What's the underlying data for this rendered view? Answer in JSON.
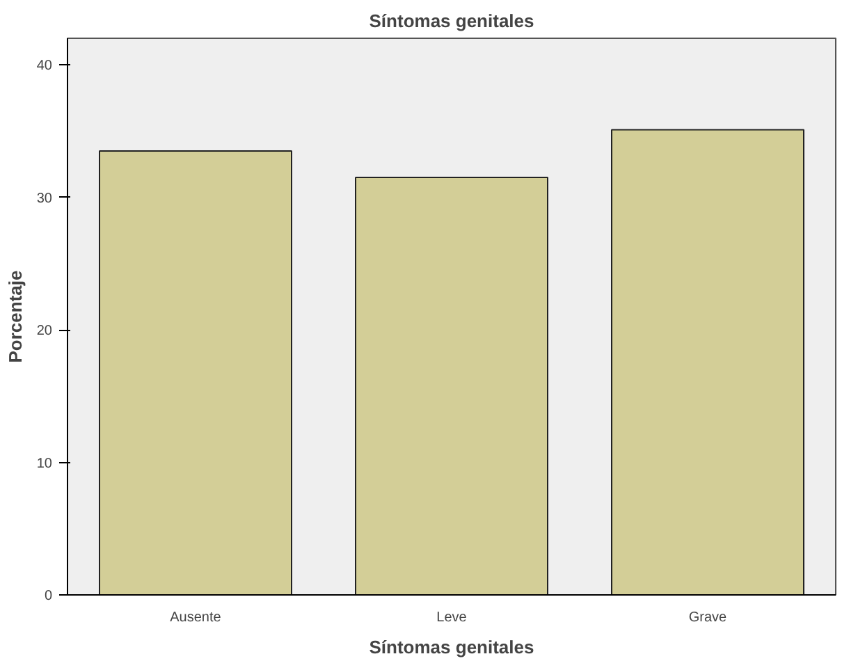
{
  "chart_data": {
    "type": "bar",
    "title": "Síntomas genitales",
    "xlabel": "Síntomas genitales",
    "ylabel": "Porcentaje",
    "categories": [
      "Ausente",
      "Leve",
      "Grave"
    ],
    "values": [
      33.5,
      31.5,
      35.1
    ],
    "color": "#d3ce97",
    "ylim": [
      0,
      42
    ],
    "yticks": [
      0,
      10,
      20,
      30,
      40
    ],
    "grid": false
  }
}
